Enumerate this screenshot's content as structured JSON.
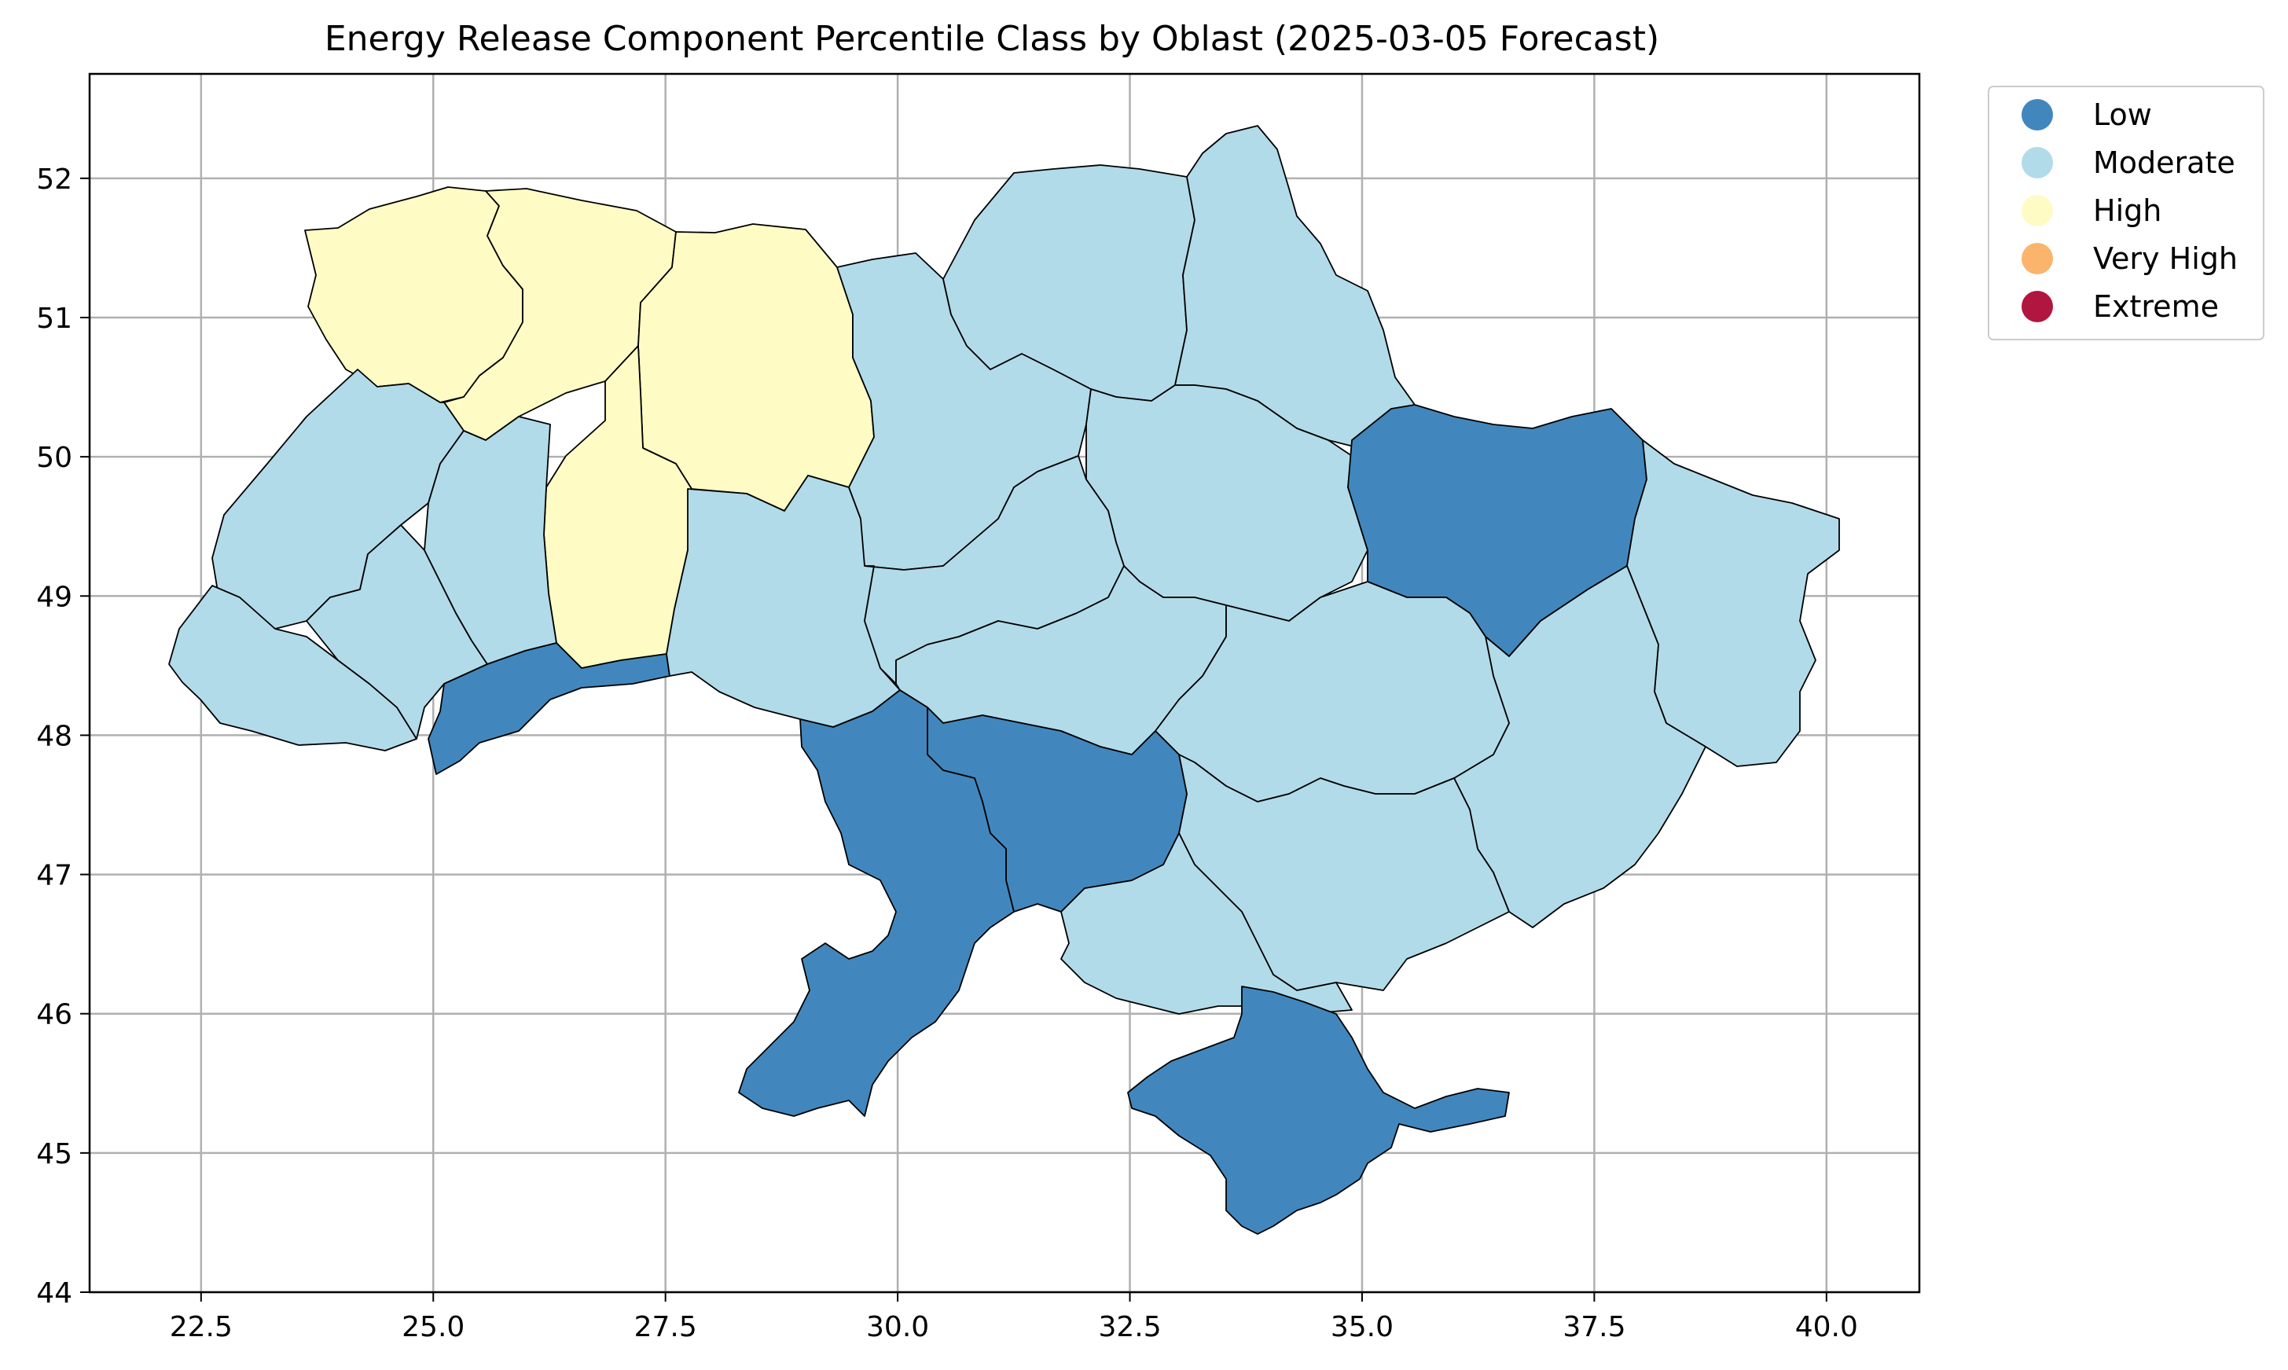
{
  "chart_data": {
    "type": "choropleth",
    "title": "Energy Release Component Percentile Class by Oblast (2025-03-05 Forecast)",
    "xlabel": "",
    "ylabel": "",
    "xlim": [
      21.3,
      41.0
    ],
    "ylim": [
      44.0,
      52.75
    ],
    "x_ticks": [
      "22.5",
      "25.0",
      "27.5",
      "30.0",
      "32.5",
      "35.0",
      "37.5",
      "40.0"
    ],
    "y_ticks": [
      "44",
      "45",
      "46",
      "47",
      "48",
      "49",
      "50",
      "51",
      "52"
    ],
    "x_tick_values": [
      22.5,
      25.0,
      27.5,
      30.0,
      32.5,
      35.0,
      37.5,
      40.0
    ],
    "y_tick_values": [
      44,
      45,
      46,
      47,
      48,
      49,
      50,
      51,
      52
    ],
    "grid": true,
    "legend_position": "outside-top-right",
    "legend": [
      {
        "label": "Low",
        "color": "#4187bd"
      },
      {
        "label": "Moderate",
        "color": "#b2dbe9"
      },
      {
        "label": "High",
        "color": "#fefcc4"
      },
      {
        "label": "Very High",
        "color": "#fbb46c"
      },
      {
        "label": "Extreme",
        "color": "#b0163f"
      }
    ],
    "regions": [
      {
        "key": "volyn",
        "class": "High"
      },
      {
        "key": "rivne",
        "class": "High"
      },
      {
        "key": "zhytomyr",
        "class": "High"
      },
      {
        "key": "khmelnytskyi",
        "class": "High"
      },
      {
        "key": "lviv",
        "class": "Moderate"
      },
      {
        "key": "zakarpattia",
        "class": "Moderate"
      },
      {
        "key": "ivano-frankivsk",
        "class": "Moderate"
      },
      {
        "key": "ternopil",
        "class": "Moderate"
      },
      {
        "key": "chernivtsi",
        "class": "Low"
      },
      {
        "key": "vinnytsia",
        "class": "Moderate"
      },
      {
        "key": "kyiv",
        "class": "Moderate"
      },
      {
        "key": "chernihiv",
        "class": "Moderate"
      },
      {
        "key": "sumy",
        "class": "Moderate"
      },
      {
        "key": "poltava",
        "class": "Moderate"
      },
      {
        "key": "cherkasy",
        "class": "Moderate"
      },
      {
        "key": "kirovohrad",
        "class": "Moderate"
      },
      {
        "key": "kharkiv",
        "class": "Low"
      },
      {
        "key": "luhansk",
        "class": "Moderate"
      },
      {
        "key": "donetsk",
        "class": "Moderate"
      },
      {
        "key": "dnipropetrovsk",
        "class": "Moderate"
      },
      {
        "key": "zaporizhzhia",
        "class": "Moderate"
      },
      {
        "key": "kherson",
        "class": "Moderate"
      },
      {
        "key": "odesa",
        "class": "Low"
      },
      {
        "key": "mykolaiv",
        "class": "Low"
      },
      {
        "key": "crimea",
        "class": "Low"
      }
    ]
  }
}
